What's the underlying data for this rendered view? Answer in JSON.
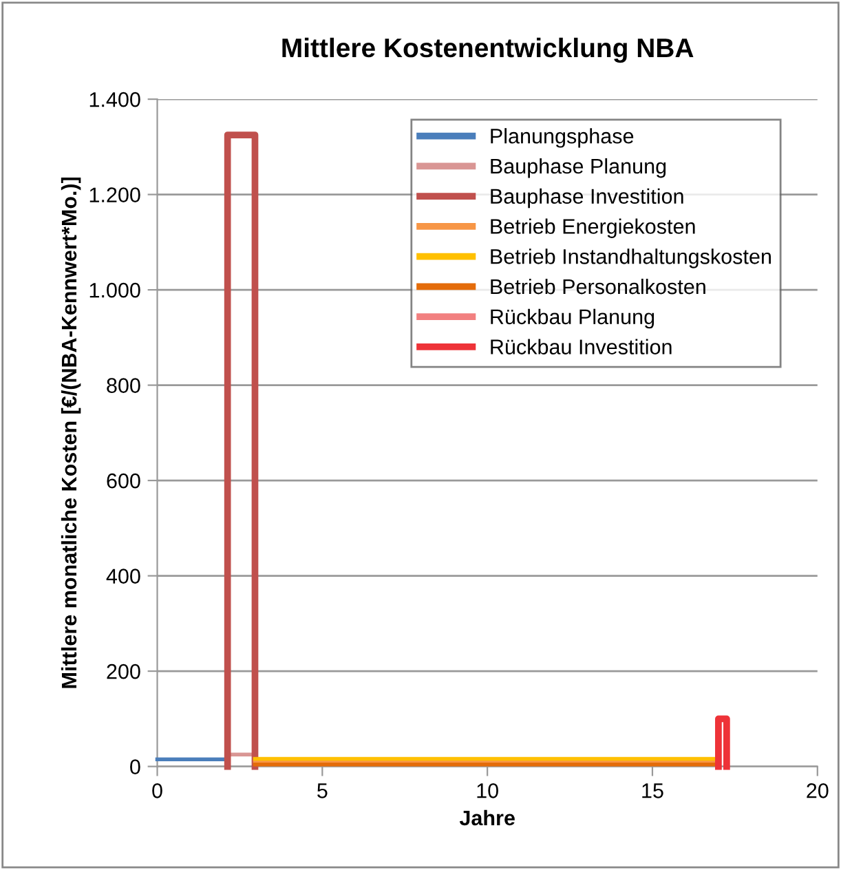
{
  "chart_data": {
    "type": "line",
    "title": "Mittlere Kostenentwicklung NBA",
    "xlabel": "Jahre",
    "ylabel": "Mittlere monatliche Kosten [€/(NBA-Kennwert*Mo.)]",
    "xlim": [
      0,
      20
    ],
    "xticks": [
      0,
      5,
      10,
      15,
      20
    ],
    "ylim": [
      0,
      1400
    ],
    "yticks": [
      {
        "value": 0,
        "label": "0"
      },
      {
        "value": 200,
        "label": "200"
      },
      {
        "value": 400,
        "label": "400"
      },
      {
        "value": 600,
        "label": "600"
      },
      {
        "value": 800,
        "label": "800"
      },
      {
        "value": 1000,
        "label": "1.000"
      },
      {
        "value": 1200,
        "label": "1.200"
      },
      {
        "value": 1400,
        "label": "1.400"
      }
    ],
    "grid": "y",
    "legend": "top right",
    "marker": "none",
    "line_style": "solid",
    "series": [
      {
        "name": "Planungsphase",
        "color": "#4a7ebb",
        "x": [
          0,
          2.13
        ],
        "values": [
          15,
          15
        ]
      },
      {
        "name": "Bauphase Planung",
        "color": "#d99694",
        "x": [
          2.13,
          2.96
        ],
        "values": [
          25,
          25
        ]
      },
      {
        "name": "Bauphase Investition",
        "color": "#c0504d",
        "x": [
          2.13,
          2.13,
          2.96,
          2.96
        ],
        "values": [
          0,
          1325,
          1325,
          0
        ]
      },
      {
        "name": "Betrieb Energiekosten",
        "color": "#f79646",
        "x": [
          2.96,
          17.0
        ],
        "values": [
          10,
          10
        ]
      },
      {
        "name": "Betrieb Instandhaltungskosten",
        "color": "#ffc000",
        "x": [
          2.96,
          17.0
        ],
        "values": [
          16,
          16
        ]
      },
      {
        "name": "Betrieb Personalkosten",
        "color": "#e46c0a",
        "x": [
          2.96,
          17.0
        ],
        "values": [
          4,
          4
        ]
      },
      {
        "name": "Rückbau Planung",
        "color": "#f28080"
      },
      {
        "name": "Rückbau Investition",
        "color": "#ee3338",
        "x": [
          17.0,
          17.0,
          17.25,
          17.25
        ],
        "values": [
          0,
          100,
          100,
          0
        ]
      }
    ]
  }
}
